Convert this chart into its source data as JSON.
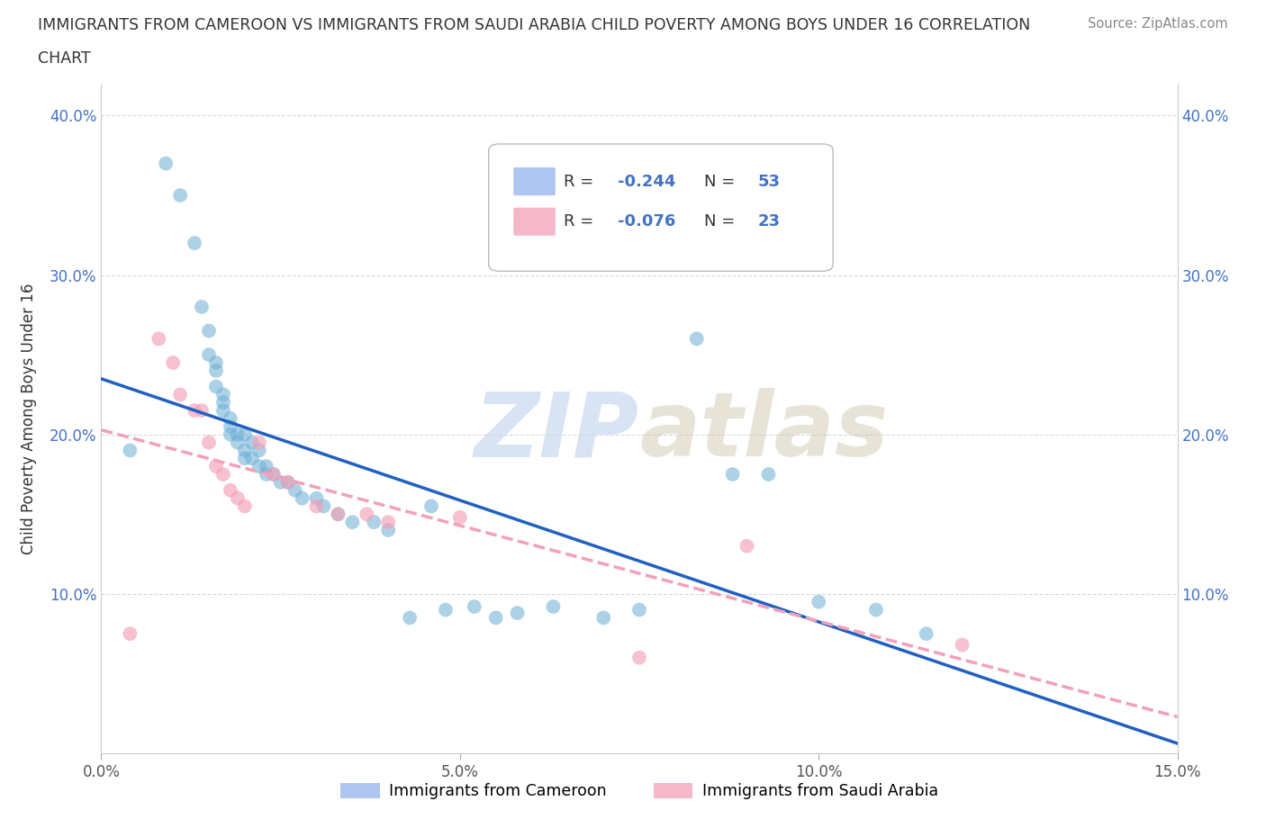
{
  "title_line1": "IMMIGRANTS FROM CAMEROON VS IMMIGRANTS FROM SAUDI ARABIA CHILD POVERTY AMONG BOYS UNDER 16 CORRELATION",
  "title_line2": "CHART",
  "source": "Source: ZipAtlas.com",
  "ylabel": "Child Poverty Among Boys Under 16",
  "xlim": [
    0.0,
    0.15
  ],
  "ylim": [
    0.0,
    0.42
  ],
  "xticks": [
    0.0,
    0.05,
    0.1,
    0.15
  ],
  "xtick_labels": [
    "0.0%",
    "5.0%",
    "10.0%",
    "15.0%"
  ],
  "yticks": [
    0.0,
    0.1,
    0.2,
    0.3,
    0.4
  ],
  "ytick_labels_left": [
    "",
    "10.0%",
    "20.0%",
    "30.0%",
    "40.0%"
  ],
  "ytick_labels_right": [
    "",
    "10.0%",
    "20.0%",
    "30.0%",
    "40.0%"
  ],
  "watermark": "ZIPatlas",
  "legend_labels": [
    "Immigrants from Cameroon",
    "Immigrants from Saudi Arabia"
  ],
  "cameroon_x": [
    0.004,
    0.009,
    0.011,
    0.013,
    0.014,
    0.015,
    0.015,
    0.016,
    0.016,
    0.016,
    0.017,
    0.017,
    0.017,
    0.018,
    0.018,
    0.018,
    0.019,
    0.019,
    0.02,
    0.02,
    0.02,
    0.021,
    0.021,
    0.022,
    0.022,
    0.023,
    0.023,
    0.024,
    0.025,
    0.026,
    0.027,
    0.028,
    0.03,
    0.031,
    0.033,
    0.035,
    0.038,
    0.04,
    0.043,
    0.046,
    0.048,
    0.052,
    0.055,
    0.058,
    0.063,
    0.07,
    0.075,
    0.083,
    0.088,
    0.093,
    0.1,
    0.108,
    0.115
  ],
  "cameroon_y": [
    0.19,
    0.37,
    0.35,
    0.32,
    0.28,
    0.265,
    0.25,
    0.245,
    0.24,
    0.23,
    0.225,
    0.22,
    0.215,
    0.21,
    0.205,
    0.2,
    0.2,
    0.195,
    0.2,
    0.19,
    0.185,
    0.185,
    0.195,
    0.19,
    0.18,
    0.18,
    0.175,
    0.175,
    0.17,
    0.17,
    0.165,
    0.16,
    0.16,
    0.155,
    0.15,
    0.145,
    0.145,
    0.14,
    0.085,
    0.155,
    0.09,
    0.092,
    0.085,
    0.088,
    0.092,
    0.085,
    0.09,
    0.26,
    0.175,
    0.175,
    0.095,
    0.09,
    0.075
  ],
  "saudi_x": [
    0.004,
    0.008,
    0.01,
    0.011,
    0.013,
    0.014,
    0.015,
    0.016,
    0.017,
    0.018,
    0.019,
    0.02,
    0.022,
    0.024,
    0.026,
    0.03,
    0.033,
    0.037,
    0.04,
    0.05,
    0.075,
    0.09,
    0.12
  ],
  "saudi_y": [
    0.075,
    0.26,
    0.245,
    0.225,
    0.215,
    0.215,
    0.195,
    0.18,
    0.175,
    0.165,
    0.16,
    0.155,
    0.195,
    0.175,
    0.17,
    0.155,
    0.15,
    0.15,
    0.145,
    0.148,
    0.06,
    0.13,
    0.068
  ],
  "cameroon_color": "#6baed6",
  "saudi_color": "#f4a0b8",
  "trendline_cameroon_color": "#2060c0",
  "trendline_saudi_color": "#f4a0b8",
  "background_color": "#ffffff",
  "grid_color": "#d8d8d8"
}
